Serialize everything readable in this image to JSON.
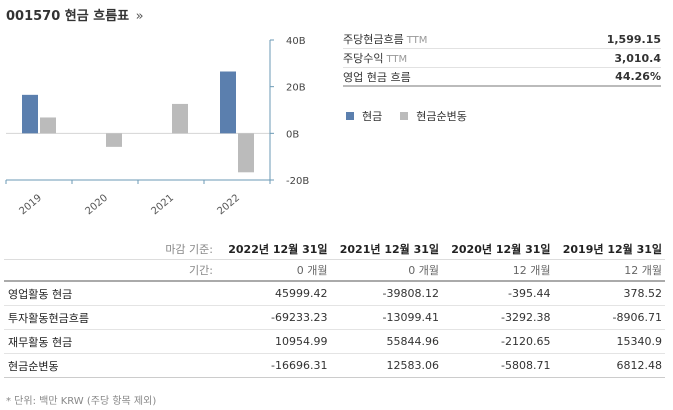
{
  "header": {
    "title": "001570 현금 흐름표",
    "more": "»"
  },
  "colors": {
    "cash": "#5b7fae",
    "net_change": "#bbbbbb",
    "axis": "#6b9ab5"
  },
  "chart_data": {
    "type": "bar",
    "categories": [
      "2019",
      "2020",
      "2021",
      "2022"
    ],
    "series": [
      {
        "name": "현금",
        "values": [
          16.5,
          null,
          null,
          26.5
        ]
      },
      {
        "name": "현금순변동",
        "values": [
          6.8,
          -5.8,
          12.6,
          -16.7
        ]
      }
    ],
    "ylim": [
      -20,
      40
    ],
    "yticks": [
      -20,
      0,
      20,
      40
    ],
    "ytick_labels": [
      "-20B",
      "0B",
      "20B",
      "40B"
    ],
    "legend": "right",
    "grid": false
  },
  "metrics": [
    {
      "label": "주당현금흐름",
      "unit": "TTM",
      "value": "1,599.15"
    },
    {
      "label": "주당수익",
      "unit": "TTM",
      "value": "3,010.4"
    },
    {
      "label": "영업 현금 흐름",
      "unit": "",
      "value": "44.26%"
    }
  ],
  "legend_items": [
    {
      "name": "현금",
      "color": "#5b7fae"
    },
    {
      "name": "현금순변동",
      "color": "#bbbbbb"
    }
  ],
  "table": {
    "header_label": "마감 기준:",
    "periods": [
      "2022년 12월 31일",
      "2021년 12월 31일",
      "2020년 12월 31일",
      "2019년 12월 31일"
    ],
    "duration_label": "기간:",
    "durations": [
      "0 개월",
      "0 개월",
      "12 개월",
      "12 개월"
    ],
    "rows": [
      {
        "label": "영업활동 현금",
        "values": [
          "45999.42",
          "-39808.12",
          "-395.44",
          "378.52"
        ]
      },
      {
        "label": "투자활동현금흐름",
        "values": [
          "-69233.23",
          "-13099.41",
          "-3292.38",
          "-8906.71"
        ]
      },
      {
        "label": "재무활동 현금",
        "values": [
          "10954.99",
          "55844.96",
          "-2120.65",
          "15340.9"
        ]
      },
      {
        "label": "현금순변동",
        "values": [
          "-16696.31",
          "12583.06",
          "-5808.71",
          "6812.48"
        ]
      }
    ]
  },
  "footnote": "* 단위: 백만 KRW (주당 항목 제외)"
}
